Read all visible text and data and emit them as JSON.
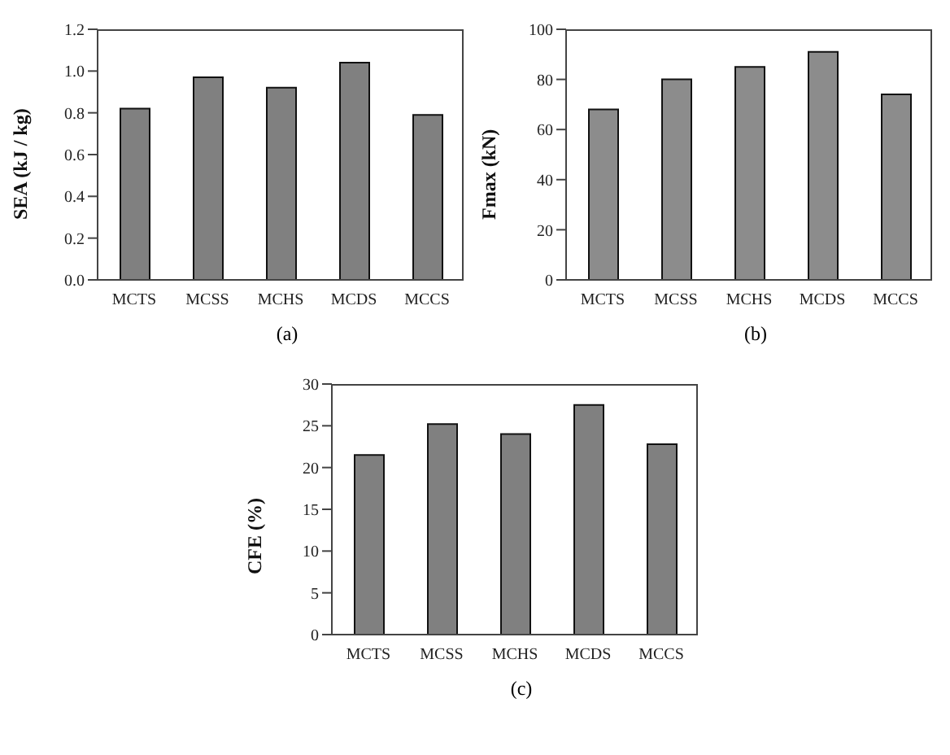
{
  "chart_data": [
    {
      "type": "bar",
      "ylabel": "SEA (kJ / kg)",
      "categories": [
        "MCTS",
        "MCSS",
        "MCHS",
        "MCDS",
        "MCCS"
      ],
      "values": [
        0.82,
        0.97,
        0.92,
        1.04,
        0.79
      ],
      "color": "#808080",
      "ylim": [
        0,
        1.2
      ],
      "yticks": [
        {
          "value": 0,
          "label": "0.0"
        },
        0.2,
        0.4,
        0.6,
        0.8,
        {
          "value": 1,
          "label": "1.0"
        },
        1.2
      ],
      "annotations": [
        "(a)"
      ]
    },
    {
      "type": "bar",
      "ylabel": "Fmax (kN)",
      "categories": [
        "MCTS",
        "MCSS",
        "MCHS",
        "MCDS",
        "MCCS"
      ],
      "values": [
        68,
        80,
        85,
        91,
        74
      ],
      "color": "#8c8c8c",
      "ylim": [
        0,
        100
      ],
      "yticks": [
        0,
        20,
        40,
        60,
        80,
        100
      ],
      "annotations": [
        "(b)"
      ]
    },
    {
      "type": "bar",
      "ylabel": "CFE (%)",
      "categories": [
        "MCTS",
        "MCSS",
        "MCHS",
        "MCDS",
        "MCCS"
      ],
      "values": [
        21.5,
        25.2,
        24,
        27.5,
        22.8
      ],
      "color": "#808080",
      "ylim": [
        0,
        30
      ],
      "yticks": [
        0,
        5,
        10,
        15,
        20,
        25,
        30
      ],
      "annotations": [
        "(c)"
      ]
    }
  ]
}
